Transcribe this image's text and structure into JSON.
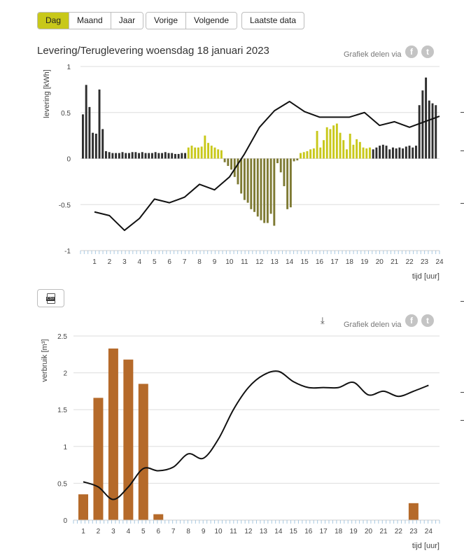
{
  "nav": {
    "period_buttons": [
      "Dag",
      "Maand",
      "Jaar"
    ],
    "nav_buttons": [
      "Vorige",
      "Volgende"
    ],
    "latest_button": "Laatste data"
  },
  "colors": {
    "active": "#c8c81a",
    "dark_bar": "#2e2e2e",
    "yellow_bar": "#c8c81a",
    "olive_bar": "#7e7a33",
    "gas_bar": "#b56a2a"
  },
  "chart1_header": {
    "title": "Levering/Teruglevering woensdag 18 januari 2023",
    "share_label": "Grafiek delen via"
  },
  "chart2_header": {
    "share_label": "Grafiek delen via"
  },
  "chart_data": [
    {
      "type": "bar",
      "title": "Levering/Teruglevering woensdag 18 januari 2023",
      "ylabel": "levering [kWh]",
      "xlabel": "tijd [uur]",
      "ylim": [
        -1,
        1
      ],
      "yticks": [
        -1,
        -0.5,
        0,
        0.5,
        1
      ],
      "xticks": [
        1,
        2,
        3,
        4,
        5,
        6,
        7,
        8,
        9,
        10,
        11,
        12,
        13,
        14,
        15,
        16,
        17,
        18,
        19,
        20,
        21,
        22,
        23,
        24
      ],
      "series": [
        {
          "name": "levering",
          "interval": "quarter-hour",
          "values": [
            0.48,
            0.8,
            0.56,
            0.28,
            0.27,
            0.75,
            0.32,
            0.08,
            0.07,
            0.06,
            0.06,
            0.06,
            0.07,
            0.06,
            0.06,
            0.07,
            0.07,
            0.06,
            0.07,
            0.06,
            0.06,
            0.06,
            0.07,
            0.06,
            0.06,
            0.07,
            0.06,
            0.06,
            0.05,
            0.05,
            0.06,
            0.06,
            0.12,
            0.14,
            0.12,
            0.12,
            0.13,
            0.25,
            0.17,
            0.14,
            0.12,
            0.1,
            0.09,
            -0.04,
            -0.08,
            -0.12,
            -0.2,
            -0.28,
            -0.38,
            -0.45,
            -0.48,
            -0.55,
            -0.58,
            -0.63,
            -0.67,
            -0.7,
            -0.7,
            -0.6,
            -0.73,
            -0.05,
            -0.15,
            -0.3,
            -0.55,
            -0.53,
            -0.03,
            -0.02,
            0.06,
            0.07,
            0.08,
            0.1,
            0.11,
            0.3,
            0.12,
            0.2,
            0.34,
            0.32,
            0.36,
            0.38,
            0.28,
            0.2,
            0.1,
            0.27,
            0.15,
            0.21,
            0.18,
            0.12,
            0.11,
            0.12,
            0.1,
            0.12,
            0.14,
            0.15,
            0.14,
            0.1,
            0.12,
            0.11,
            0.12,
            0.11,
            0.13,
            0.14,
            0.12,
            0.14,
            0.58,
            0.74,
            0.88,
            0.63,
            0.6,
            0.58
          ]
        },
        {
          "name": "temperature",
          "type": "line",
          "x": [
            1,
            2,
            3,
            4,
            5,
            6,
            7,
            8,
            9,
            10,
            11,
            12,
            13,
            14,
            15,
            16,
            17,
            18,
            19,
            20,
            21,
            22,
            23,
            24
          ],
          "values": [
            -0.58,
            -0.62,
            -0.78,
            -0.65,
            -0.44,
            -0.48,
            -0.42,
            -0.28,
            -0.34,
            -0.2,
            0.05,
            0.34,
            0.52,
            0.62,
            0.51,
            0.45,
            0.45,
            0.45,
            0.5,
            0.36,
            0.4,
            0.34,
            0.4,
            0.46
          ]
        }
      ]
    },
    {
      "type": "bar",
      "ylabel": "verbruik [m³]",
      "xlabel": "tijd [uur]",
      "ylim": [
        0,
        2.5
      ],
      "yticks": [
        0,
        0.5,
        1,
        1.5,
        2,
        2.5
      ],
      "categories": [
        1,
        2,
        3,
        4,
        5,
        6,
        7,
        8,
        9,
        10,
        11,
        12,
        13,
        14,
        15,
        16,
        17,
        18,
        19,
        20,
        21,
        22,
        23,
        24
      ],
      "series": [
        {
          "name": "verbruik",
          "values": [
            0.35,
            1.66,
            2.33,
            2.18,
            1.85,
            0.08,
            0,
            0,
            0,
            0,
            0,
            0,
            0,
            0,
            0,
            0,
            0,
            0,
            0,
            0,
            0,
            0,
            0.23,
            0
          ]
        },
        {
          "name": "temperature",
          "type": "line",
          "x": [
            1,
            2,
            3,
            4,
            5,
            6,
            7,
            8,
            9,
            10,
            11,
            12,
            13,
            14,
            15,
            16,
            17,
            18,
            19,
            20,
            21,
            22,
            23,
            24
          ],
          "values": [
            0.52,
            0.45,
            0.28,
            0.45,
            0.7,
            0.67,
            0.72,
            0.9,
            0.84,
            1.1,
            1.5,
            1.8,
            1.97,
            2.02,
            1.88,
            1.8,
            1.8,
            1.8,
            1.87,
            1.7,
            1.75,
            1.68,
            1.75,
            1.83
          ]
        }
      ]
    }
  ]
}
